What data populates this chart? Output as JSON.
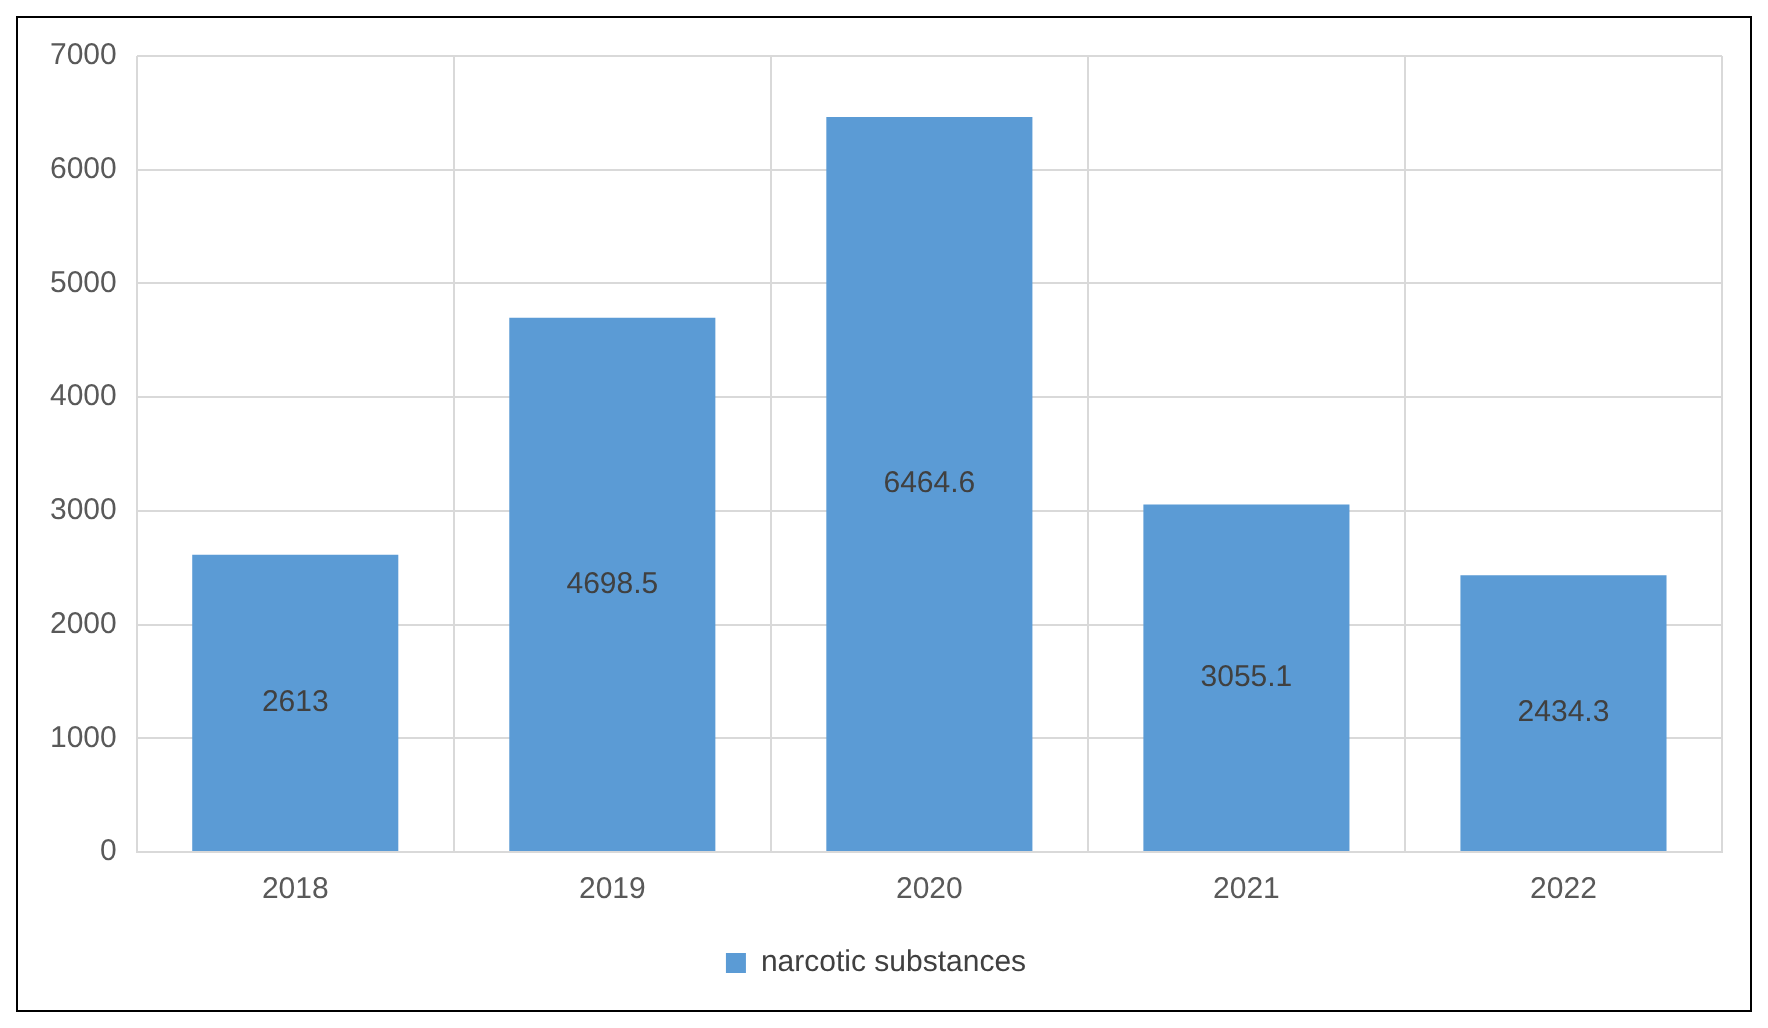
{
  "chart_data": {
    "type": "bar",
    "categories": [
      "2018",
      "2019",
      "2020",
      "2021",
      "2022"
    ],
    "series": [
      {
        "name": "narcotic substances",
        "color": "#5b9bd5",
        "values": [
          2613,
          4698.5,
          6464.6,
          3055.1,
          2434.3
        ]
      }
    ],
    "ylim": [
      0,
      7000
    ],
    "yticks": [
      0,
      1000,
      2000,
      3000,
      4000,
      5000,
      6000,
      7000
    ],
    "grid": true,
    "legend": "bottom",
    "data_labels": true
  }
}
